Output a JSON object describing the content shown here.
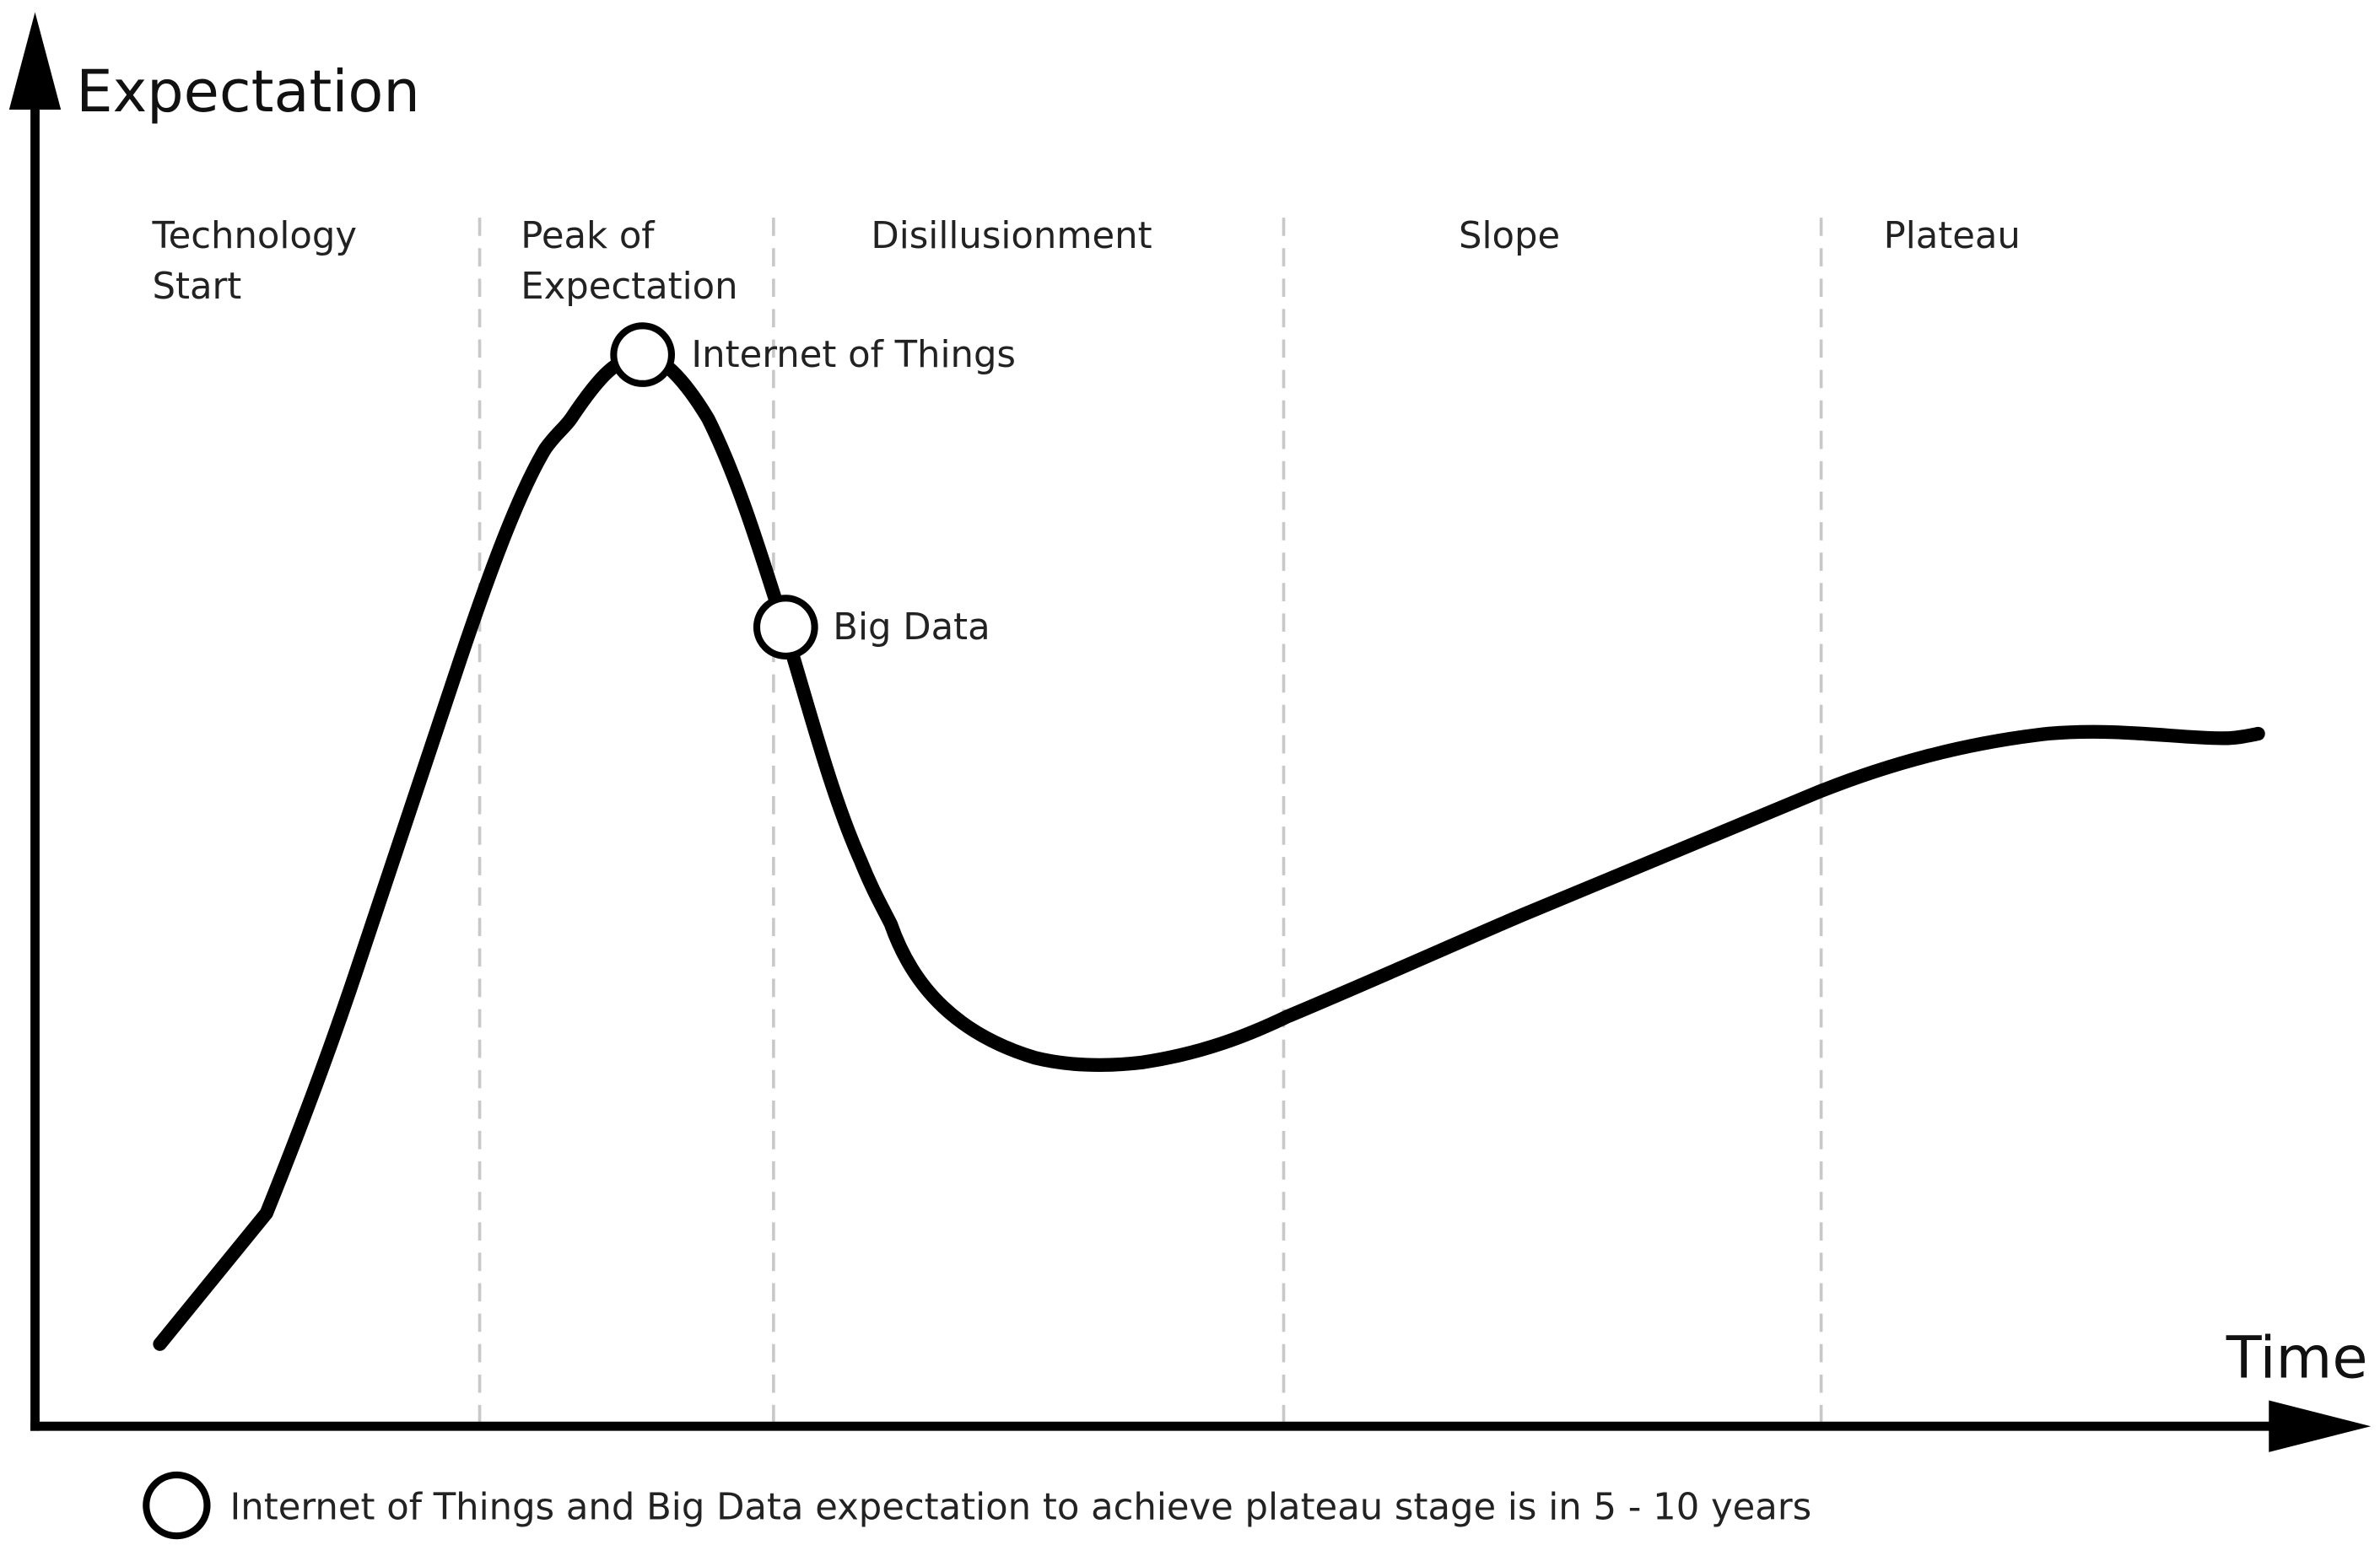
{
  "axes": {
    "y_label": "Expectation",
    "x_label": "Time"
  },
  "phases": [
    {
      "lines": [
        "Technology",
        "Start"
      ]
    },
    {
      "lines": [
        "Peak of",
        "Expectation"
      ]
    },
    {
      "lines": [
        "Disillusionment"
      ]
    },
    {
      "lines": [
        "Slope"
      ]
    },
    {
      "lines": [
        "Plateau"
      ]
    }
  ],
  "markers": [
    {
      "label": "Internet of Things"
    },
    {
      "label": "Big Data"
    }
  ],
  "footnote": "Internet of Things and Big Data expectation to achieve plateau stage is in 5 - 10 years"
}
